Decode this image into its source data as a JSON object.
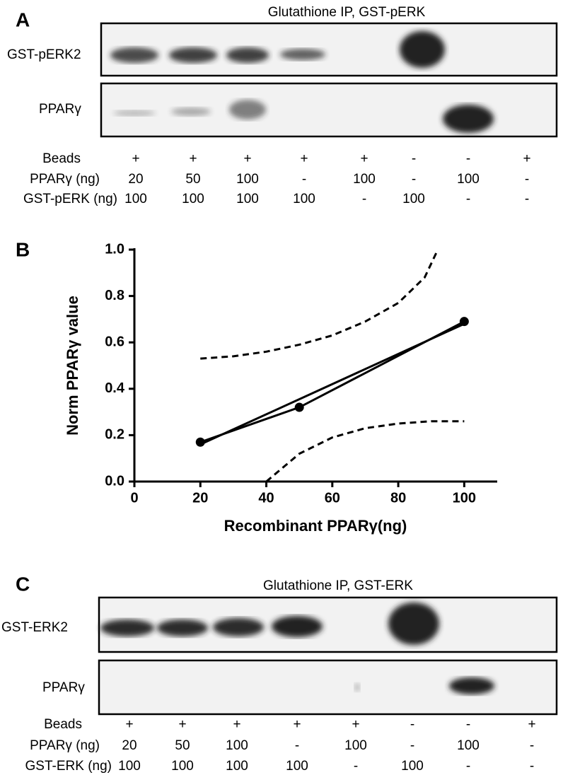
{
  "panel_a": {
    "label": "A",
    "title": "Glutathione IP, GST-pERK",
    "blots": [
      "GST-pERK2",
      "PPARγ"
    ],
    "conditions": [
      {
        "name": "Beads",
        "values": [
          "+",
          "+",
          "+",
          "+",
          "+",
          "-",
          "-",
          "+"
        ]
      },
      {
        "name": "PPARγ (ng)",
        "values": [
          20,
          50,
          100,
          "-",
          100,
          "-",
          100,
          "-"
        ]
      },
      {
        "name": "GST-pERK (ng)",
        "values": [
          100,
          100,
          100,
          100,
          "-",
          100,
          "-",
          "-"
        ]
      }
    ]
  },
  "panel_b": {
    "label": "B"
  },
  "chart_data": {
    "type": "line",
    "x_label": "Recombinant PPARγ(ng)",
    "y_label": "Norm PPARγ value",
    "xlim": [
      0,
      110
    ],
    "ylim": [
      0,
      1
    ],
    "xticks": [
      0,
      20,
      40,
      60,
      80,
      100
    ],
    "yticks": [
      {
        "value": 0,
        "label": "0.0"
      },
      0.2,
      0.4,
      0.6,
      0.8,
      {
        "value": 1,
        "label": "1.0"
      }
    ],
    "series": [
      {
        "color": "#000000",
        "style": "solid",
        "markers": true,
        "x": [
          20,
          50,
          100
        ],
        "values": [
          0.17,
          0.32,
          0.69
        ]
      },
      {
        "color": "#000000",
        "style": "solid",
        "markers": false,
        "x": [
          20,
          100
        ],
        "values": [
          0.16,
          0.68
        ]
      },
      {
        "color": "#000000",
        "style": "dashed",
        "markers": false,
        "x": [
          20,
          30,
          40,
          50,
          60,
          70,
          80,
          88,
          92
        ],
        "values": [
          0.53,
          0.54,
          0.56,
          0.59,
          0.63,
          0.69,
          0.77,
          0.88,
          1.0
        ]
      },
      {
        "color": "#000000",
        "style": "dashed",
        "markers": false,
        "x": [
          40,
          50,
          60,
          70,
          80,
          90,
          100
        ],
        "values": [
          0.0,
          0.12,
          0.19,
          0.23,
          0.25,
          0.26,
          0.26
        ]
      }
    ]
  },
  "panel_c": {
    "label": "C",
    "title": "Glutathione IP, GST-ERK",
    "blots": [
      "GST-ERK2",
      "PPARγ"
    ],
    "conditions": [
      {
        "name": "Beads",
        "values": [
          "+",
          "+",
          "+",
          "+",
          "+",
          "-",
          "-",
          "+"
        ]
      },
      {
        "name": "PPARγ (ng)",
        "values": [
          20,
          50,
          100,
          "-",
          100,
          "-",
          100,
          "-"
        ]
      },
      {
        "name": "GST-ERK (ng)",
        "values": [
          100,
          100,
          100,
          100,
          "-",
          100,
          "-",
          "-"
        ]
      }
    ]
  }
}
